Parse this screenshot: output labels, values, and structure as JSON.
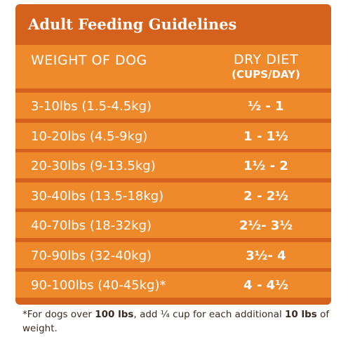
{
  "title": "Adult Feeding Guidelines",
  "header": {
    "weight_label": "WEIGHT OF DOG",
    "diet_label": "DRY DIET",
    "diet_unit": "(CUPS/DAY)"
  },
  "rows": [
    {
      "weight": "3-10lbs (1.5-4.5kg)",
      "diet": "½ - 1"
    },
    {
      "weight": "10-20lbs (4.5-9kg)",
      "diet": "1 - 1½"
    },
    {
      "weight": "20-30lbs (9-13.5kg)",
      "diet": "1½ - 2"
    },
    {
      "weight": "30-40lbs (13.5-18kg)",
      "diet": "2 - 2½"
    },
    {
      "weight": "40-70lbs (18-32kg)",
      "diet": "2½- 3½"
    },
    {
      "weight": "70-90lbs (32-40kg)",
      "diet": "3½- 4"
    },
    {
      "weight": "90-100lbs (40-45kg)*",
      "diet": "4 - 4½"
    }
  ],
  "footnote": {
    "part1": "*For dogs over ",
    "bold1": "100 lbs",
    "part2": ", add ¼ cup for each additional ",
    "bold2": "10 lbs",
    "part3": " of weight."
  },
  "colors": {
    "card_background": "#d4611c",
    "row_background": "#ee8a2c",
    "text_light": "#ffffff",
    "footnote_text": "#3b2a1e"
  }
}
